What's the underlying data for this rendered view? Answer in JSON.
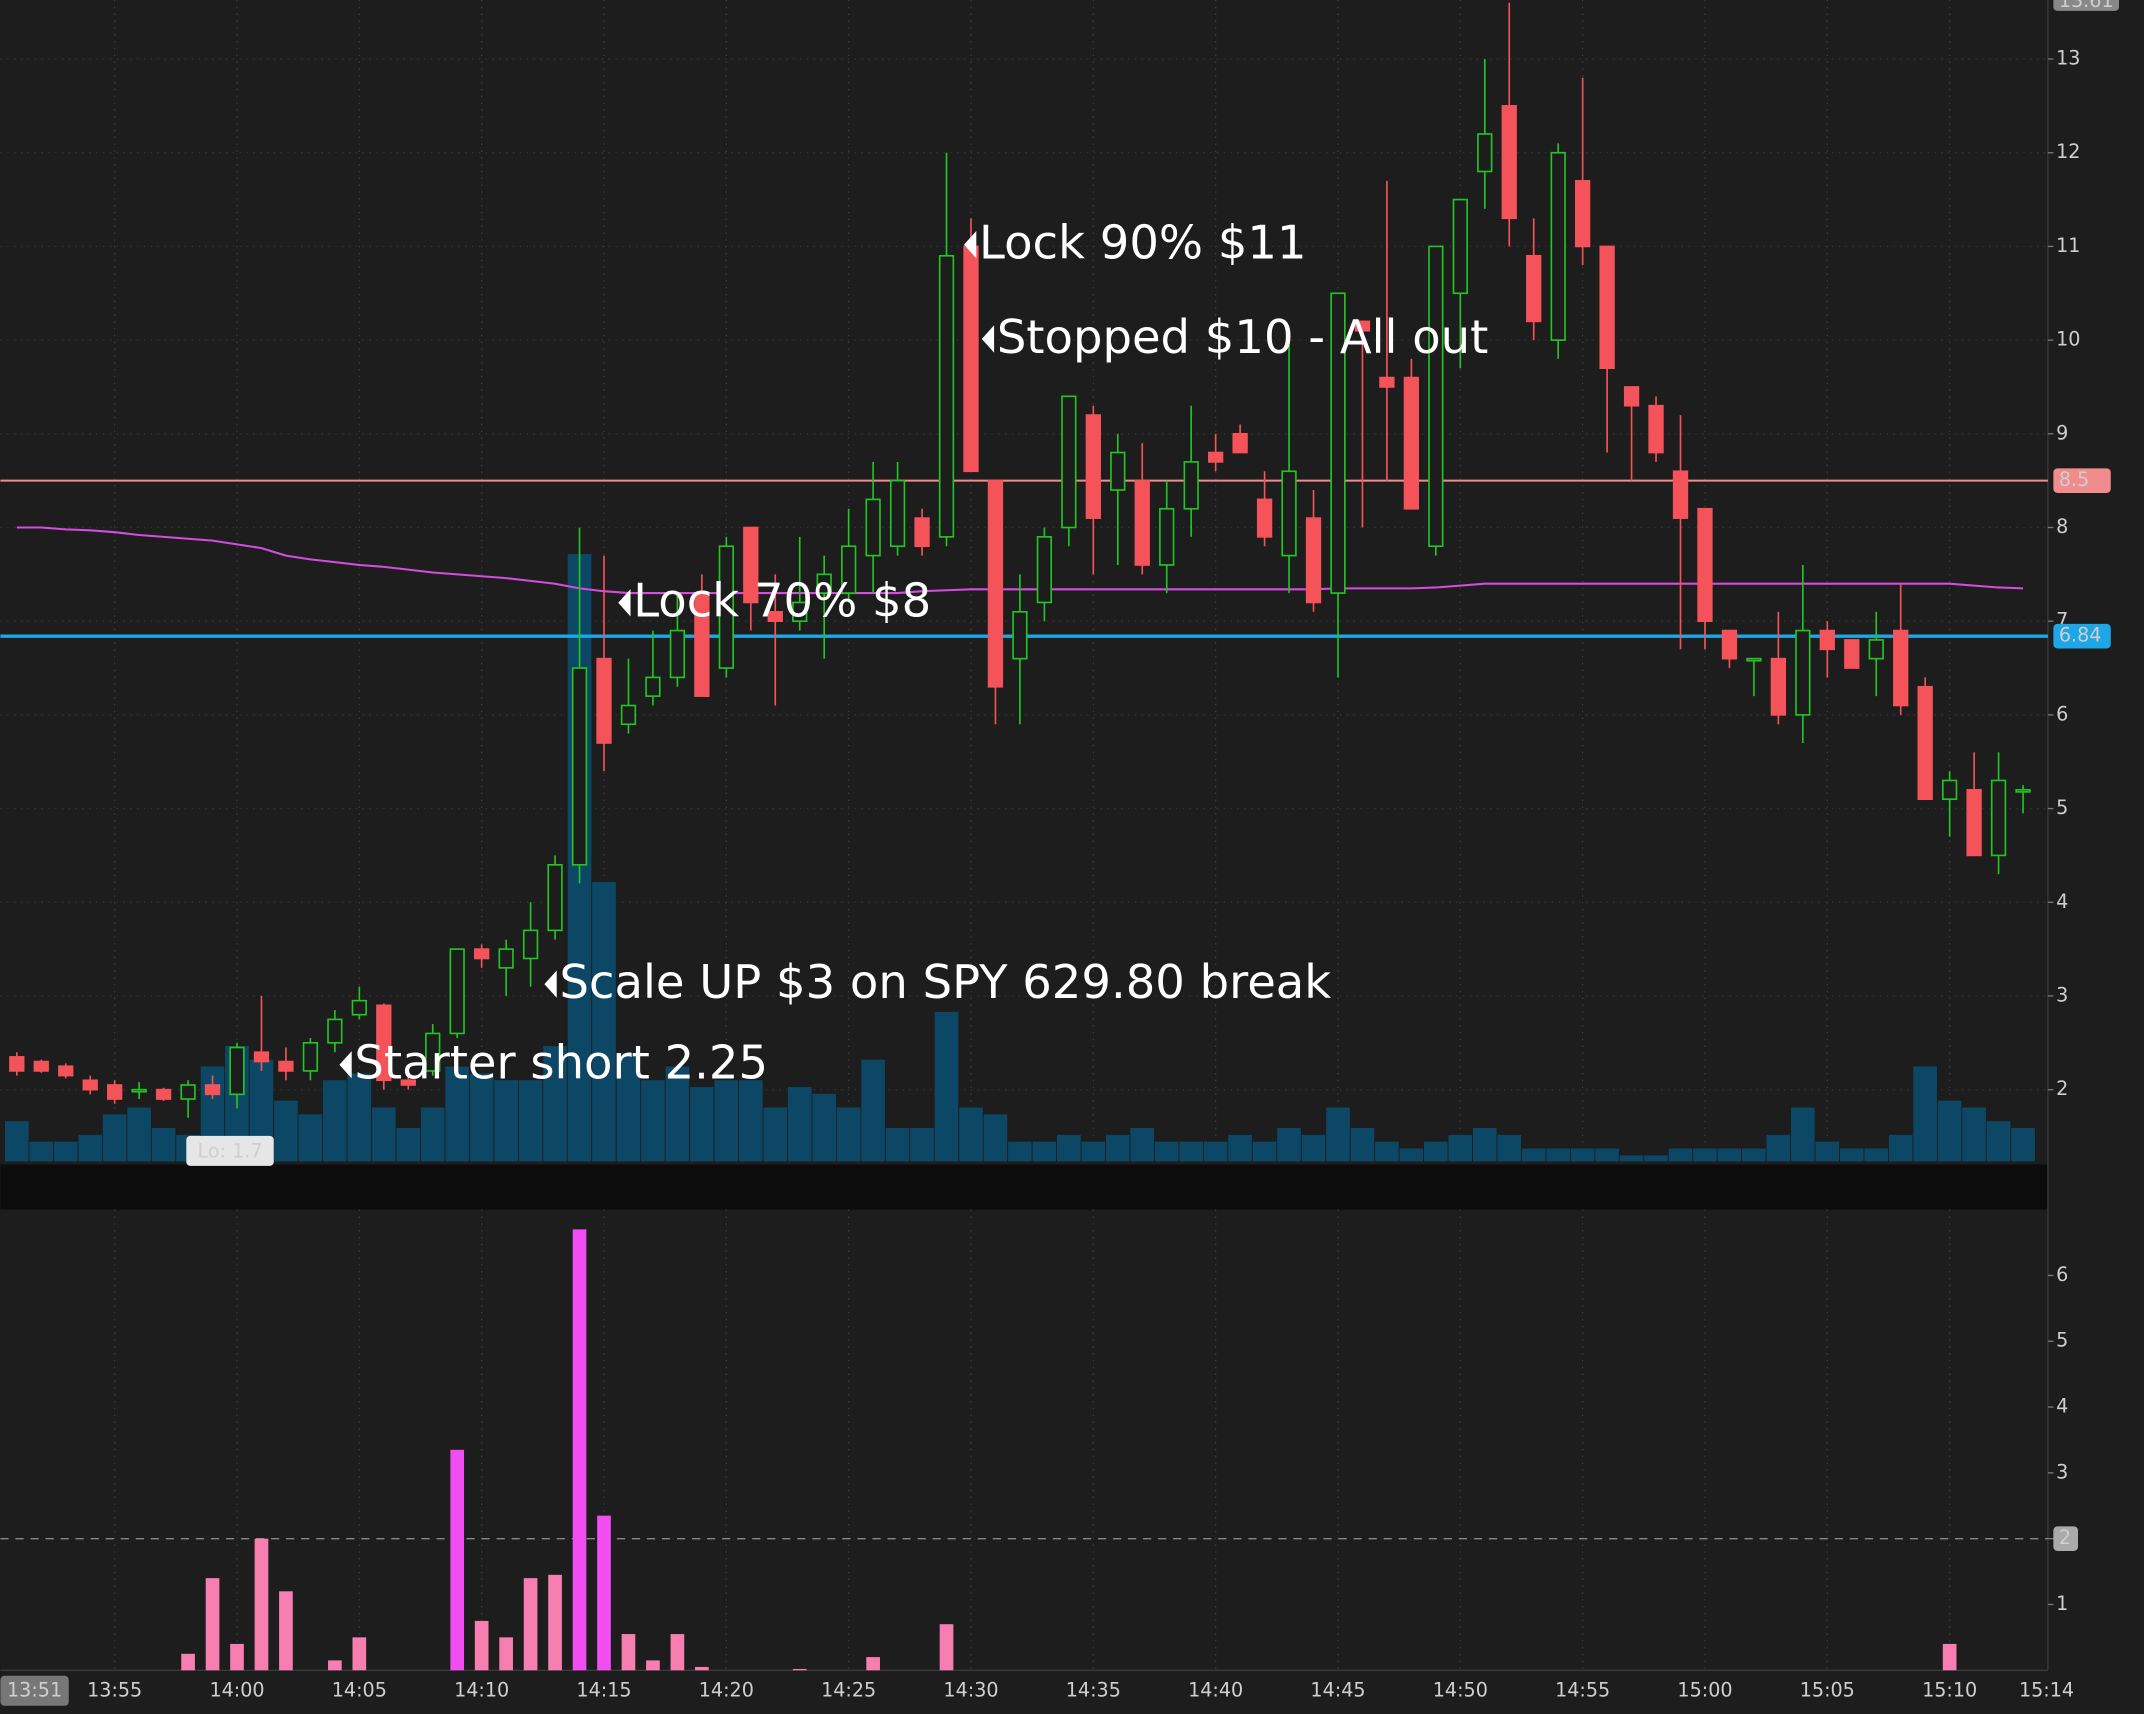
{
  "chart_data": [
    {
      "type": "candlestick",
      "categories": [
        "13:51",
        null,
        null,
        null,
        "13:55",
        null,
        null,
        null,
        null,
        "14:00",
        null,
        null,
        null,
        null,
        "14:05",
        null,
        null,
        null,
        null,
        "14:10",
        null,
        null,
        null,
        null,
        "14:15",
        null,
        null,
        null,
        null,
        "14:20",
        null,
        null,
        null,
        null,
        "14:25",
        null,
        null,
        null,
        null,
        "14:30",
        null,
        null,
        null,
        null,
        "14:35",
        null,
        null,
        null,
        null,
        "14:40",
        null,
        null,
        null,
        null,
        "14:45",
        null,
        null,
        null,
        null,
        "14:50",
        null,
        null,
        null,
        null,
        "14:55",
        null,
        null,
        null,
        null,
        "15:00",
        null,
        null,
        null,
        null,
        "15:05",
        null,
        null,
        null,
        null,
        "15:10",
        null,
        null,
        null,
        "15:14"
      ],
      "open": [
        2.35,
        2.3,
        2.25,
        2.1,
        2.05,
        2.0,
        2.0,
        1.9,
        2.05,
        1.95,
        2.4,
        2.3,
        2.2,
        2.5,
        2.8,
        2.9,
        2.1,
        2.2,
        2.6,
        3.5,
        3.3,
        3.4,
        3.7,
        4.4,
        6.6,
        5.9,
        6.2,
        6.4,
        7.3,
        6.5,
        8.0,
        7.1,
        7.0,
        7.3,
        7.3,
        7.7,
        7.8,
        8.1,
        7.9,
        11.0,
        8.5,
        6.6,
        7.2,
        8.0,
        9.2,
        8.4,
        8.5,
        7.6,
        8.2,
        8.8,
        9.0,
        8.3,
        7.7,
        8.1,
        7.3,
        10.2,
        9.6,
        9.6,
        7.8,
        10.5,
        11.8,
        12.5,
        10.9,
        10.0,
        11.7,
        11.0,
        9.5,
        9.3,
        8.6,
        8.2,
        6.9,
        6.6,
        6.6,
        6.0,
        6.9,
        6.8,
        6.6,
        6.9,
        6.3,
        5.1,
        5.2,
        4.5,
        5.2,
        null
      ],
      "high": [
        2.4,
        2.32,
        2.28,
        2.15,
        2.1,
        2.08,
        2.02,
        2.1,
        2.15,
        2.5,
        3.0,
        2.45,
        2.55,
        2.85,
        3.1,
        2.92,
        2.15,
        2.7,
        3.5,
        3.55,
        3.6,
        4.0,
        4.5,
        8.0,
        7.7,
        6.6,
        6.9,
        7.3,
        7.5,
        7.9,
        8.0,
        7.5,
        7.9,
        7.7,
        8.2,
        8.7,
        8.7,
        8.2,
        12.0,
        11.3,
        8.5,
        7.5,
        8.0,
        9.4,
        9.3,
        9.0,
        8.9,
        8.5,
        9.3,
        9.0,
        9.1,
        8.6,
        10.0,
        8.4,
        10.5,
        10.2,
        11.7,
        9.8,
        11.0,
        11.5,
        13.0,
        13.6,
        11.3,
        12.1,
        12.8,
        11.0,
        9.5,
        9.4,
        9.2,
        8.2,
        6.9,
        6.6,
        7.1,
        7.6,
        7.0,
        6.8,
        7.1,
        7.4,
        6.4,
        5.4,
        5.6,
        5.6,
        5.25,
        null
      ],
      "low": [
        2.15,
        2.18,
        2.12,
        1.95,
        1.85,
        1.9,
        1.88,
        1.7,
        1.9,
        1.8,
        2.2,
        2.1,
        2.1,
        2.4,
        2.75,
        2.0,
        2.0,
        2.15,
        2.55,
        3.3,
        3.0,
        3.1,
        3.6,
        4.2,
        5.4,
        5.8,
        6.1,
        6.3,
        6.2,
        6.4,
        6.9,
        6.1,
        6.9,
        6.6,
        7.2,
        7.3,
        7.7,
        7.7,
        7.8,
        8.6,
        5.9,
        5.9,
        7.0,
        7.8,
        7.5,
        7.6,
        7.5,
        7.3,
        7.9,
        8.6,
        8.8,
        7.8,
        7.3,
        7.1,
        6.4,
        8.0,
        8.5,
        8.2,
        7.7,
        9.7,
        11.4,
        11.0,
        10.0,
        9.8,
        10.8,
        8.8,
        8.5,
        8.7,
        6.7,
        6.7,
        6.5,
        6.2,
        5.9,
        5.7,
        6.4,
        6.5,
        6.2,
        6.0,
        5.1,
        4.7,
        4.5,
        4.3,
        4.95,
        null
      ],
      "close": [
        2.2,
        2.2,
        2.15,
        2.0,
        1.9,
        2.0,
        1.9,
        2.05,
        1.95,
        2.45,
        2.3,
        2.2,
        2.5,
        2.75,
        2.95,
        2.1,
        2.05,
        2.6,
        3.5,
        3.4,
        3.5,
        3.7,
        4.4,
        6.5,
        5.7,
        6.1,
        6.4,
        6.9,
        6.2,
        7.8,
        7.2,
        7.0,
        7.2,
        7.5,
        7.8,
        8.3,
        8.5,
        7.8,
        10.9,
        8.6,
        6.3,
        7.1,
        7.9,
        9.4,
        8.1,
        8.8,
        7.6,
        8.2,
        8.7,
        8.7,
        8.8,
        7.9,
        8.6,
        7.2,
        10.5,
        10.1,
        9.5,
        8.2,
        11.0,
        11.5,
        12.2,
        11.3,
        10.2,
        12.0,
        11.0,
        9.7,
        9.3,
        8.8,
        8.1,
        7.0,
        6.6,
        6.6,
        6.0,
        6.9,
        6.7,
        6.5,
        6.8,
        6.1,
        5.1,
        5.3,
        4.5,
        5.3,
        5.2,
        null
      ],
      "volume": [
        30,
        15,
        15,
        20,
        35,
        40,
        25,
        20,
        70,
        85,
        75,
        45,
        35,
        60,
        65,
        40,
        25,
        40,
        70,
        65,
        60,
        60,
        85,
        445,
        205,
        80,
        60,
        70,
        55,
        60,
        60,
        40,
        55,
        50,
        40,
        75,
        25,
        25,
        110,
        40,
        35,
        15,
        15,
        20,
        15,
        20,
        25,
        15,
        15,
        15,
        20,
        15,
        25,
        20,
        40,
        25,
        15,
        10,
        15,
        20,
        25,
        20,
        10,
        10,
        10,
        10,
        5,
        5,
        10,
        10,
        10,
        10,
        20,
        40,
        15,
        10,
        10,
        20,
        70,
        45,
        40,
        30,
        25,
        null
      ],
      "vwap": [
        8.0,
        8.0,
        7.98,
        7.97,
        7.95,
        7.92,
        7.9,
        7.88,
        7.86,
        7.82,
        7.78,
        7.7,
        7.66,
        7.63,
        7.6,
        7.58,
        7.55,
        7.52,
        7.5,
        7.48,
        7.46,
        7.43,
        7.4,
        7.35,
        7.32,
        7.3,
        7.3,
        7.3,
        7.3,
        7.3,
        7.3,
        7.3,
        7.3,
        7.3,
        7.3,
        7.3,
        7.3,
        7.32,
        7.33,
        7.34,
        7.34,
        7.34,
        7.34,
        7.34,
        7.34,
        7.34,
        7.34,
        7.34,
        7.34,
        7.34,
        7.34,
        7.34,
        7.34,
        7.34,
        7.35,
        7.35,
        7.35,
        7.35,
        7.36,
        7.38,
        7.4,
        7.4,
        7.4,
        7.4,
        7.4,
        7.4,
        7.4,
        7.4,
        7.4,
        7.4,
        7.4,
        7.4,
        7.4,
        7.4,
        7.4,
        7.4,
        7.4,
        7.4,
        7.4,
        7.4,
        7.38,
        7.36,
        7.35,
        null
      ],
      "up_color": "#22c522",
      "down_color": "#f5535a",
      "volume_color": "#0c4866",
      "vwap_color": "#d64be0",
      "ylim": [
        1.23,
        13.63
      ],
      "yticks": [
        2,
        3,
        4,
        5,
        6,
        7,
        8,
        9,
        10,
        11,
        12,
        13
      ],
      "grid": true,
      "hlines": [
        {
          "value": 8.5,
          "color": "#f08c8c"
        },
        {
          "value": 6.84,
          "color": "#1ea7e6"
        }
      ],
      "session_high": 13.61,
      "low_label": "Lo: 1.7",
      "annotations": [
        "Starter short 2.25",
        "Scale UP $3 on SPY 629.80 break",
        "Lock 70% $8",
        "Lock 90% $11",
        "Stopped $10 - All out"
      ]
    },
    {
      "type": "bar",
      "values": [
        0,
        0,
        0,
        0,
        0,
        0,
        0,
        0.25,
        1.4,
        0.4,
        2.0,
        1.2,
        0,
        0.15,
        0.5,
        0,
        0,
        0,
        3.35,
        0.75,
        0.5,
        1.4,
        1.45,
        6.7,
        2.35,
        0.55,
        0.15,
        0.55,
        0.05,
        0,
        0,
        0,
        0.02,
        0,
        0,
        0.2,
        0,
        0,
        0.7,
        0,
        0,
        0,
        0,
        0,
        0,
        0,
        0,
        0,
        0,
        0,
        0,
        0,
        0,
        0,
        0,
        0,
        0,
        0,
        0,
        0,
        0,
        0,
        0,
        0,
        0,
        0,
        0,
        0,
        0,
        0,
        0,
        0,
        0,
        0,
        0,
        0,
        0,
        0,
        0,
        0.4,
        0,
        0,
        0,
        null
      ],
      "color": "#f77fb0",
      "highlight_color": "#f04ef0",
      "threshold": 2,
      "ylim": [
        0,
        7
      ],
      "yticks": [
        1,
        2,
        3,
        4,
        5,
        6
      ]
    }
  ]
}
